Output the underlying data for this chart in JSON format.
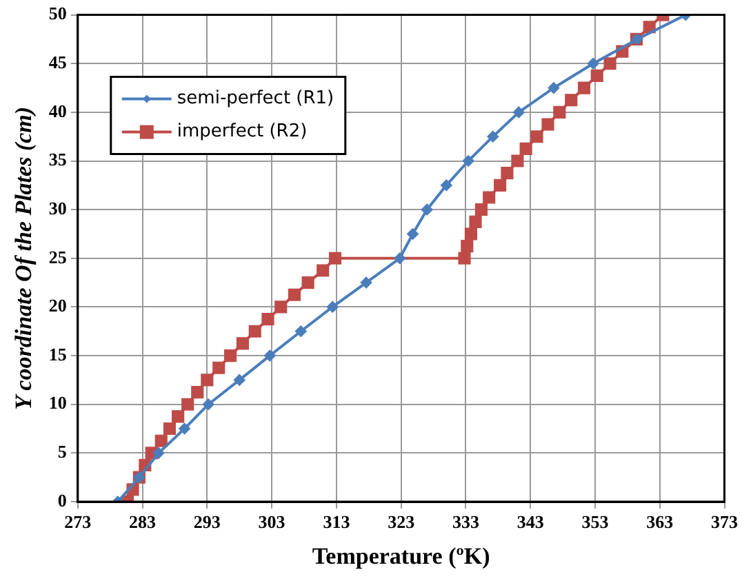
{
  "chart_data": {
    "type": "line",
    "xlabel": "Temperature (ºK)",
    "ylabel": "Y coordinate Of the Plates (cm)",
    "xlim": [
      273,
      373
    ],
    "xticks": [
      273,
      283,
      293,
      303,
      313,
      323,
      333,
      343,
      353,
      363,
      373
    ],
    "ylim": [
      0,
      50
    ],
    "yticks": [
      0,
      5,
      10,
      15,
      20,
      25,
      30,
      35,
      40,
      45,
      50
    ],
    "grid": true,
    "legend": "top left",
    "series": [
      {
        "name": "semi-perfect (R1)",
        "color": "#4a7ebb",
        "marker": "diamond",
        "x": [
          279.2,
          282.5,
          285.5,
          289.5,
          293.2,
          298,
          302.7,
          307.5,
          312.4,
          317.6,
          322.8,
          324.8,
          327,
          330,
          333.4,
          337.2,
          341.2,
          346.6,
          352.7,
          359.5,
          367
        ],
        "values": [
          0,
          2.5,
          5,
          7.5,
          10,
          12.5,
          15,
          17.5,
          20,
          22.5,
          25,
          27.5,
          30,
          32.5,
          35,
          37.5,
          40,
          42.5,
          45,
          47.5,
          50
        ]
      },
      {
        "name": "imperfect (R2)",
        "color": "#be4b48",
        "marker": "square",
        "x": [
          280.7,
          281.5,
          282.5,
          283.4,
          284.4,
          285.9,
          287.2,
          288.5,
          290,
          291.5,
          293,
          294.8,
          296.6,
          298.5,
          300.4,
          302.4,
          304.4,
          306.5,
          308.6,
          310.9,
          312.8,
          332.8,
          333.2,
          333.8,
          334.5,
          335.4,
          336.6,
          338.3,
          339.4,
          341,
          342.3,
          344,
          345.7,
          347.5,
          349.3,
          351.3,
          353.3,
          355.3,
          357.2,
          359.4,
          361.4,
          363.5
        ],
        "values": [
          0,
          1.25,
          2.5,
          3.75,
          5,
          6.25,
          7.5,
          8.75,
          10,
          11.25,
          12.5,
          13.75,
          15,
          16.25,
          17.5,
          18.75,
          20,
          21.25,
          22.5,
          23.75,
          25,
          25,
          26.25,
          27.5,
          28.75,
          30,
          31.25,
          32.5,
          33.75,
          35,
          36.25,
          37.5,
          38.75,
          40,
          41.25,
          42.5,
          43.75,
          45,
          46.25,
          47.5,
          48.75,
          50
        ]
      }
    ]
  }
}
